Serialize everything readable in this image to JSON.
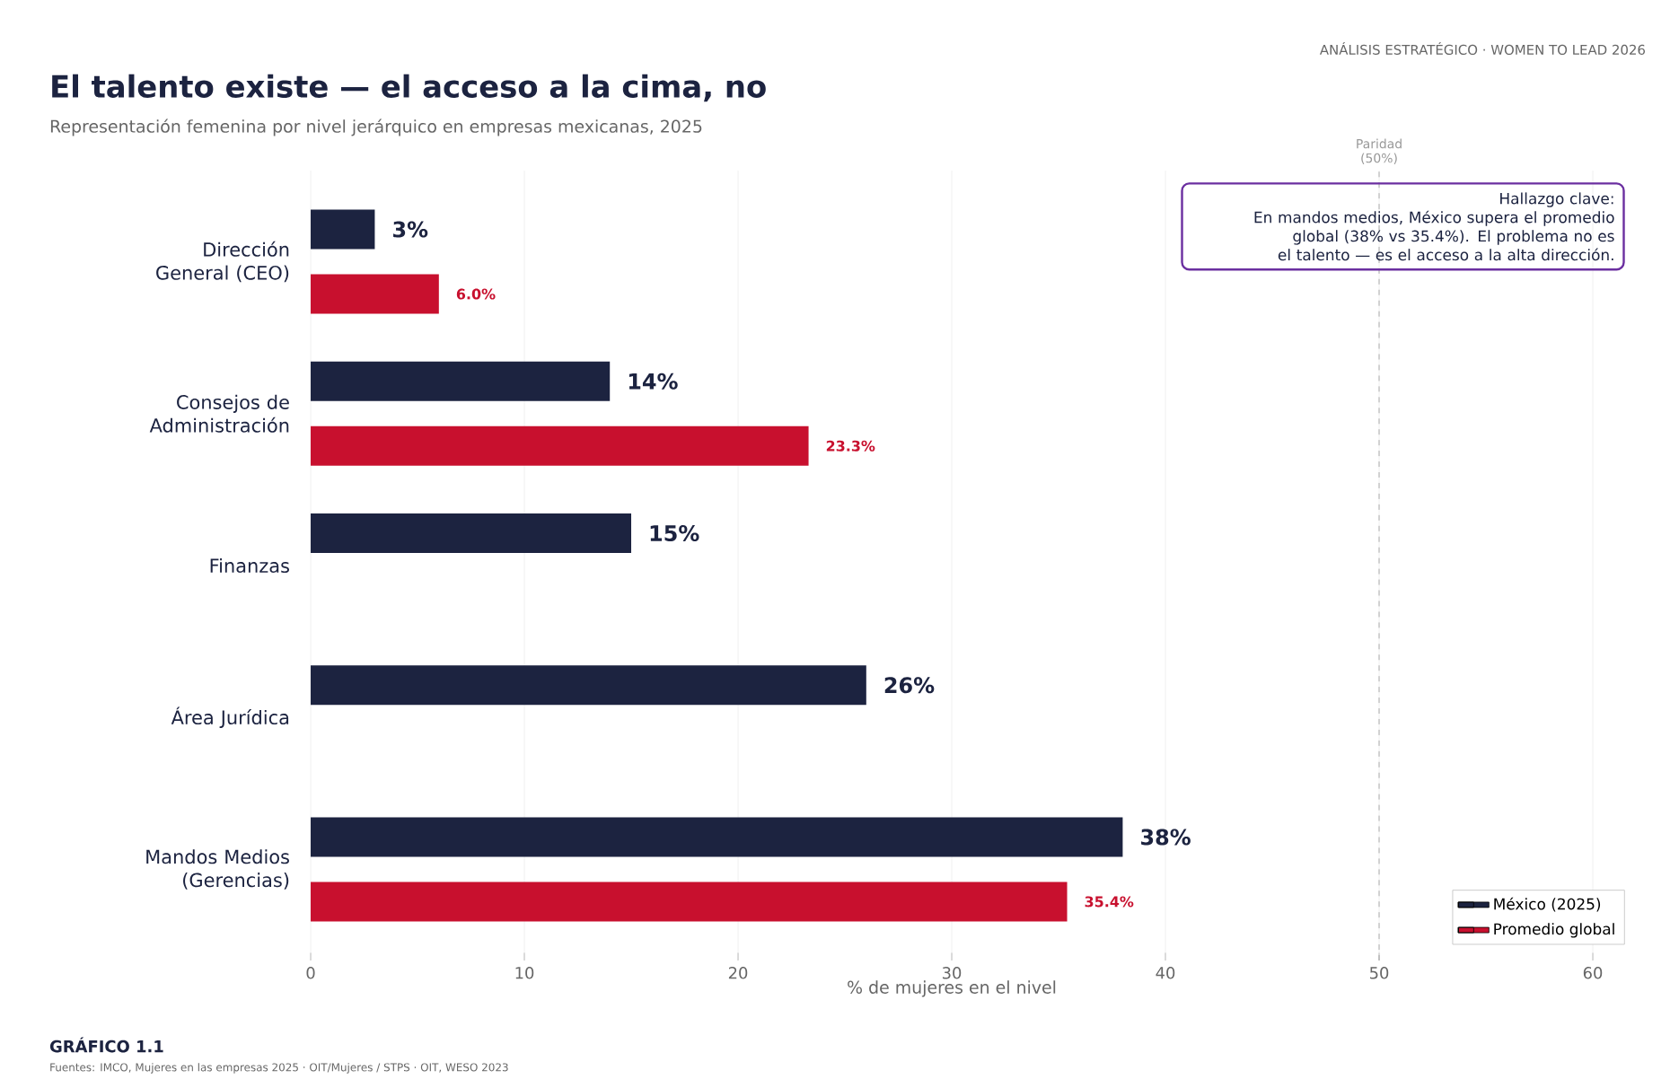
{
  "chart_data": {
    "type": "bar",
    "orientation": "horizontal",
    "title": "El talento existe — el acceso a la cima, no",
    "subtitle": "Representación femenina por nivel jerárquico en empresas mexicanas, 2025",
    "xlabel": "% de mujeres en el nivel",
    "categories": [
      "Dirección General (CEO)",
      "Consejos de Administración",
      "Finanzas",
      "Área Jurídica",
      "Mandos Medios (Gerencias)"
    ],
    "series": [
      {
        "name": "México (2025)",
        "color": "#1c2340",
        "values": [
          3,
          14,
          15,
          26,
          38
        ],
        "value_labels": [
          "3%",
          "14%",
          "15%",
          "26%",
          "38%"
        ]
      },
      {
        "name": "Promedio global",
        "color": "#c8102e",
        "values": [
          6.0,
          23.3,
          null,
          null,
          35.4
        ],
        "value_labels": [
          "6.0%",
          "23.3%",
          null,
          null,
          "35.4%"
        ]
      }
    ],
    "xlim": [
      0,
      60
    ],
    "xticks": [
      0,
      10,
      20,
      30,
      40,
      50,
      60
    ],
    "grid": "x",
    "legend": "bottom right",
    "ref_lines": [
      {
        "axis": "x",
        "value": 50,
        "label": "Paridad (50%)",
        "color": "#999999",
        "line_style": "dashed"
      }
    ],
    "annotations": [
      "Hallazgo clave:",
      "En mandos medios, México supera el promedio global (38% vs 35.4%). El problema no es el talento — es el acceso a la alta dirección.",
      "GRÁFICO 1.1",
      "Fuentes: IMCO, Mujeres en las empresas 2025 · OIT/Mujeres / STPS · OIT, WESO 2023",
      "ANÁLISIS ESTRATÉGICO · WOMEN TO LEAD 2026"
    ]
  }
}
